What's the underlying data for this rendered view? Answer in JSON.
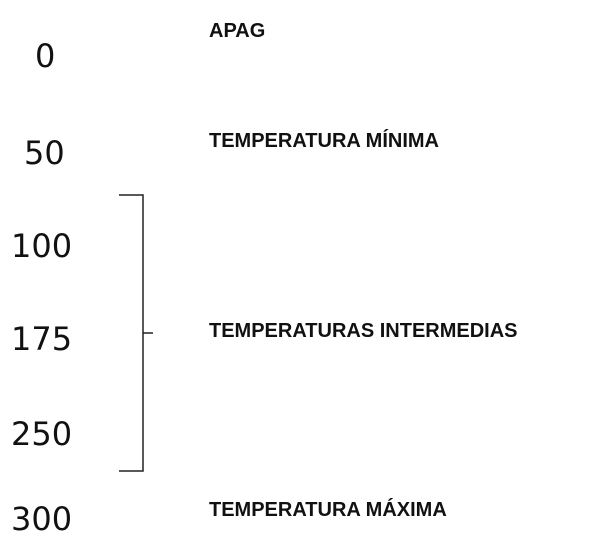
{
  "dial_values": [
    "0",
    "50",
    "100",
    "175",
    "250",
    "300"
  ],
  "zones": {
    "off": "APAG",
    "minimum": "TEMPERATURA MÍNIMA",
    "intermediate": "TEMPERATURAS INTERMEDIAS",
    "maximum": "TEMPERATURA MÁXIMA"
  },
  "colors": {
    "text": "#111111",
    "bracket": "#222222"
  }
}
